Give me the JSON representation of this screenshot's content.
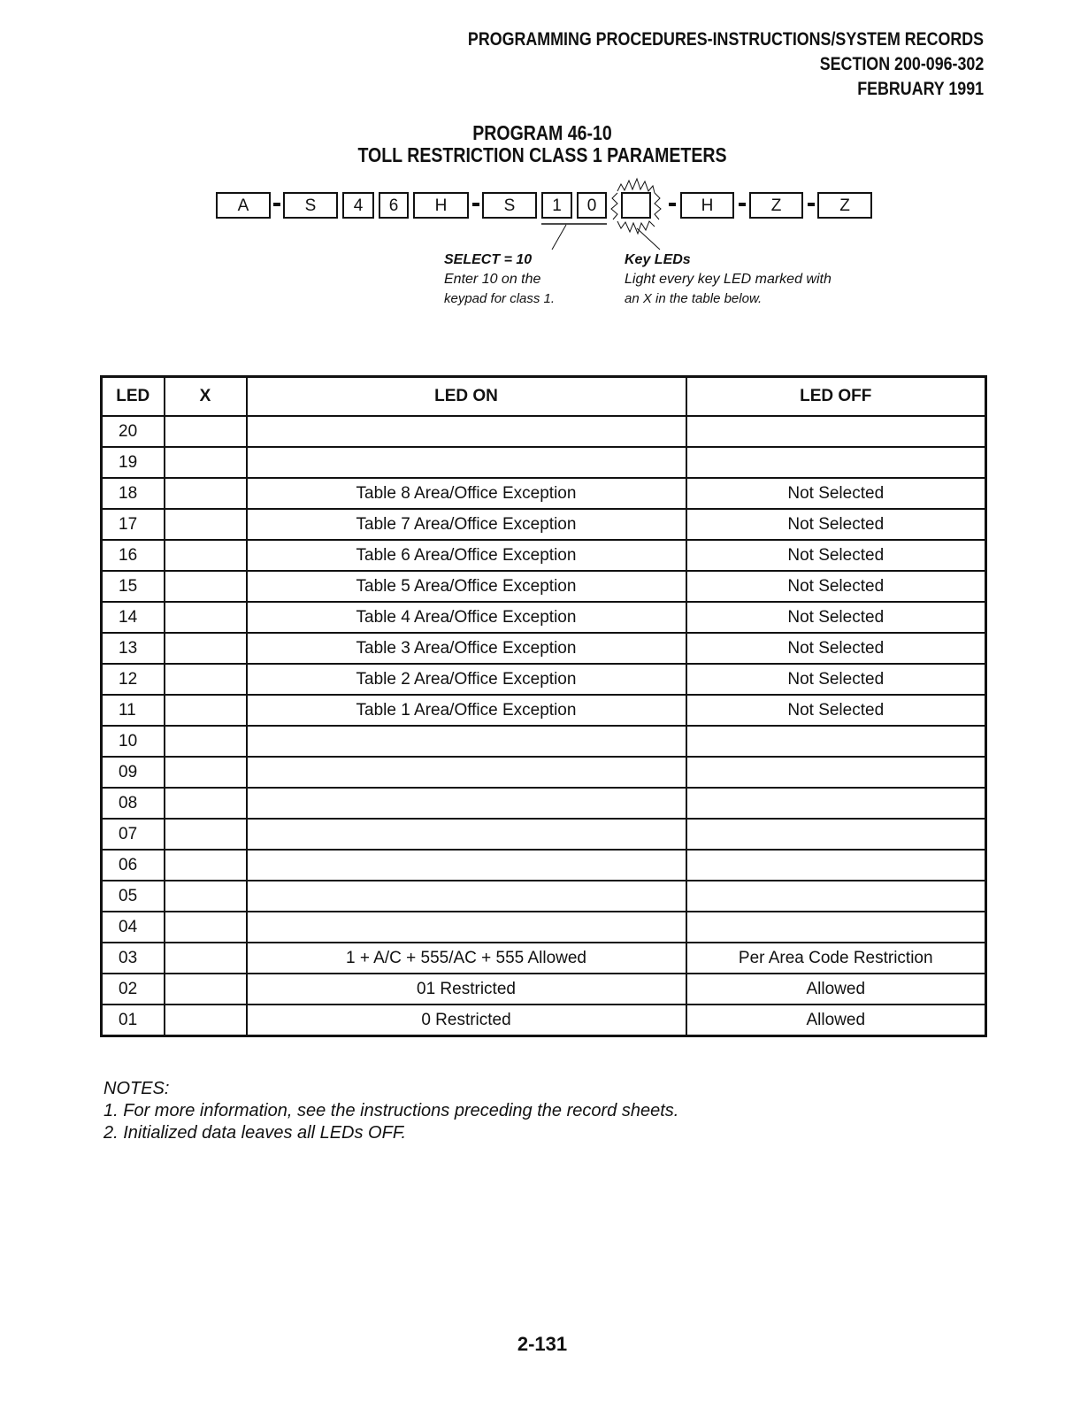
{
  "header": {
    "line1": "PROGRAMMING PROCEDURES-INSTRUCTIONS/SYSTEM RECORDS",
    "line2": "SECTION 200-096-302",
    "line3": "FEBRUARY 1991"
  },
  "title": {
    "line1": "PROGRAM 46-10",
    "line2": "TOLL RESTRICTION CLASS 1 PARAMETERS"
  },
  "key_sequence": [
    "A",
    "S",
    "4",
    "6",
    "H",
    "S",
    "1",
    "0",
    "",
    "H",
    "Z",
    "Z"
  ],
  "captions": {
    "select": {
      "heading": "SELECT = 10",
      "line1": "Enter 10 on the",
      "line2": "keypad for class 1."
    },
    "key_leds": {
      "heading": "Key LEDs",
      "line1": "Light every key LED marked with",
      "line2": "an X in the table below."
    }
  },
  "table": {
    "headers": [
      "LED",
      "X",
      "LED ON",
      "LED OFF"
    ],
    "rows": [
      {
        "led": "20",
        "x": "",
        "on": "",
        "off": ""
      },
      {
        "led": "19",
        "x": "",
        "on": "",
        "off": ""
      },
      {
        "led": "18",
        "x": "",
        "on": "Table 8 Area/Office Exception",
        "off": "Not Selected"
      },
      {
        "led": "17",
        "x": "",
        "on": "Table 7 Area/Office Exception",
        "off": "Not Selected"
      },
      {
        "led": "16",
        "x": "",
        "on": "Table 6 Area/Office Exception",
        "off": "Not Selected"
      },
      {
        "led": "15",
        "x": "",
        "on": "Table 5 Area/Office Exception",
        "off": "Not Selected"
      },
      {
        "led": "14",
        "x": "",
        "on": "Table 4 Area/Office Exception",
        "off": "Not Selected"
      },
      {
        "led": "13",
        "x": "",
        "on": "Table 3 Area/Office Exception",
        "off": "Not Selected"
      },
      {
        "led": "12",
        "x": "",
        "on": "Table 2 Area/Office Exception",
        "off": "Not Selected"
      },
      {
        "led": "11",
        "x": "",
        "on": "Table 1 Area/Office Exception",
        "off": "Not Selected"
      },
      {
        "led": "10",
        "x": "",
        "on": "",
        "off": ""
      },
      {
        "led": "09",
        "x": "",
        "on": "",
        "off": ""
      },
      {
        "led": "08",
        "x": "",
        "on": "",
        "off": ""
      },
      {
        "led": "07",
        "x": "",
        "on": "",
        "off": ""
      },
      {
        "led": "06",
        "x": "",
        "on": "",
        "off": ""
      },
      {
        "led": "05",
        "x": "",
        "on": "",
        "off": ""
      },
      {
        "led": "04",
        "x": "",
        "on": "",
        "off": ""
      },
      {
        "led": "03",
        "x": "",
        "on": "1 + A/C + 555/AC + 555 Allowed",
        "off": "Per Area Code Restriction"
      },
      {
        "led": "02",
        "x": "",
        "on": "01 Restricted",
        "off": "Allowed"
      },
      {
        "led": "01",
        "x": "",
        "on": "0 Restricted",
        "off": "Allowed"
      }
    ]
  },
  "notes": {
    "heading": "NOTES:",
    "items": [
      "1. For more information, see the instructions preceding the record sheets.",
      "2. Initialized data leaves all LEDs  OFF."
    ]
  },
  "page_number": "2-131"
}
